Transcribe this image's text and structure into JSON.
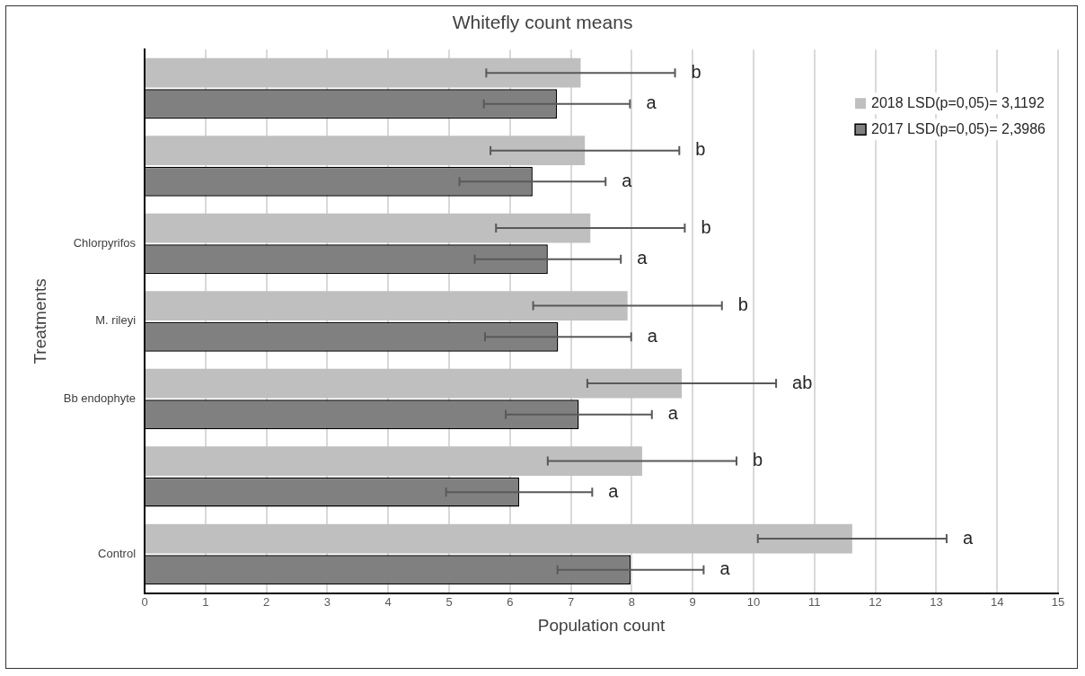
{
  "chart_data": {
    "type": "bar",
    "orientation": "horizontal",
    "title": "Whitefly count means",
    "xlabel": "Population count",
    "ylabel": "Treatments",
    "categories": [
      null,
      null,
      "Chlorpyrifos",
      "M. rileyi",
      "Bb endophyte",
      null,
      "Control"
    ],
    "series": [
      {
        "name": "2018 LSD(p=0,05)= 3,1192",
        "color": "#bfbfbf",
        "values": [
          7.16,
          7.23,
          7.32,
          7.93,
          8.82,
          8.17,
          11.62
        ],
        "errors": [
          1.55,
          1.55,
          1.55,
          1.55,
          1.55,
          1.55,
          1.55
        ]
      },
      {
        "name": "2017 LSD(p=0,05)= 2,3986",
        "color": "#808080",
        "values": [
          6.77,
          6.37,
          6.62,
          6.79,
          7.13,
          6.15,
          7.98
        ],
        "errors": [
          1.2,
          1.2,
          1.2,
          1.2,
          1.2,
          1.2,
          1.2
        ]
      }
    ],
    "annotations": [
      "b",
      "a",
      "b",
      "a",
      "b",
      "a",
      "b",
      "a",
      "ab",
      "a",
      "b",
      "a",
      "a",
      "a"
    ],
    "xlim": [
      0,
      15
    ],
    "xticks": [
      0,
      1,
      2,
      3,
      4,
      5,
      6,
      7,
      8,
      9,
      10,
      11,
      12,
      13,
      14,
      15
    ],
    "grid": "x",
    "legend": "top right"
  }
}
